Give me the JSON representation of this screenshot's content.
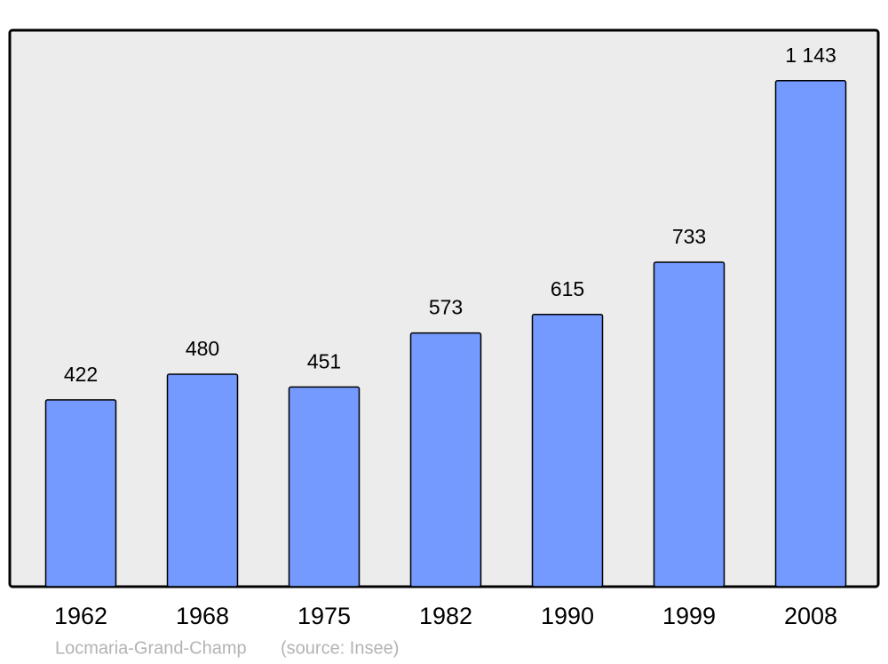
{
  "chart_data": {
    "type": "bar",
    "categories": [
      "1962",
      "1968",
      "1975",
      "1982",
      "1990",
      "1999",
      "2008"
    ],
    "values": [
      422,
      480,
      451,
      573,
      615,
      733,
      1143
    ],
    "value_labels": [
      "422",
      "480",
      "451",
      "573",
      "615",
      "733",
      "1 143"
    ],
    "color": "#7499ff",
    "ylim": [
      0,
      1257
    ],
    "caption": "Locmaria-Grand-Champ",
    "source": "(source: Insee)"
  }
}
